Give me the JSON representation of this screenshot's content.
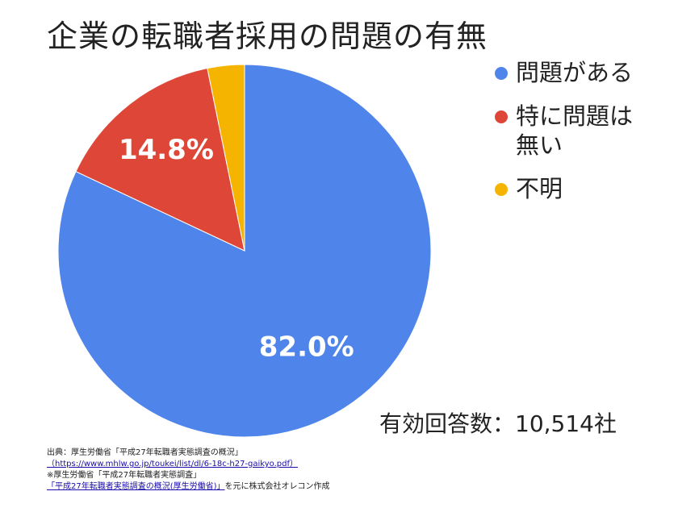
{
  "chart_data": {
    "type": "pie",
    "title": "企業の転職者採用の問題の有無",
    "slices": [
      {
        "label": "問題がある",
        "value": 82.0,
        "value_label": "82.0%",
        "color": "#4f85ea"
      },
      {
        "label": "特に問題は無い",
        "value": 14.8,
        "value_label": "14.8%",
        "color": "#de4737"
      },
      {
        "label": "不明",
        "value": 3.2,
        "value_label": "",
        "color": "#f4b400"
      }
    ],
    "legend_position": "right",
    "annotation": "有効回答数：10,514社"
  },
  "legend": {
    "item1": "問題がある",
    "item2_line1": "特に問題は",
    "item2_line2": "無い",
    "item3": "不明"
  },
  "source": {
    "line1": "出典：厚生労働省「平成27年転職者実態調査の概況」",
    "line2": "（https://www.mhlw.go.jp/toukei/list/dl/6-18c-h27-gaikyo.pdf）",
    "line3": "※厚生労働省「平成27年転職者実態調査」",
    "line4_link": "「平成27年転職者実態調査の概況(厚生労働省)」",
    "line4_rest": "を元に株式会社オレコン作成"
  }
}
